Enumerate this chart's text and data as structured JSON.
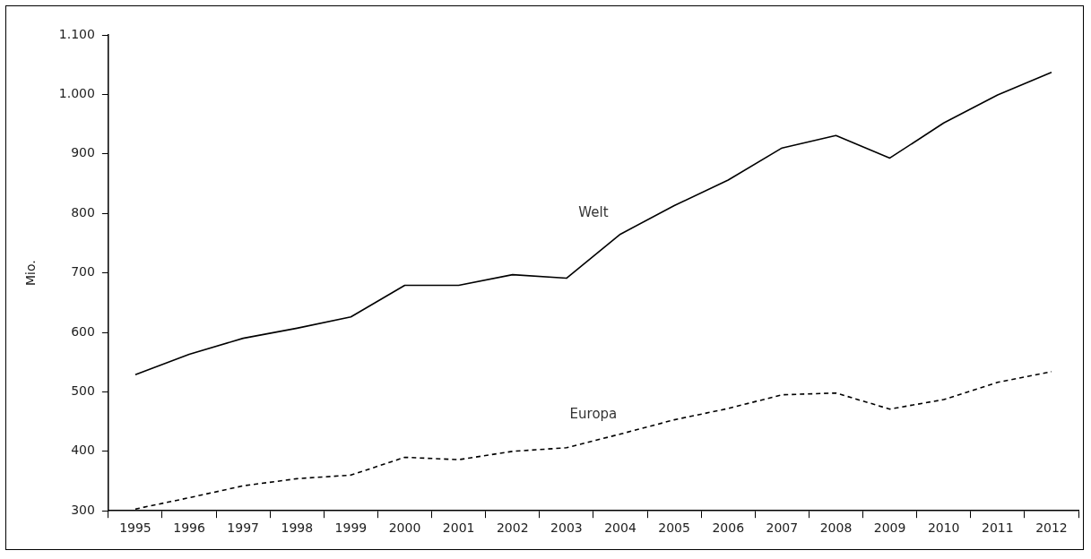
{
  "chart_data": {
    "type": "line",
    "ylabel": "Mio.",
    "categories": [
      "1995",
      "1996",
      "1997",
      "1998",
      "1999",
      "2000",
      "2001",
      "2002",
      "2003",
      "2004",
      "2005",
      "2006",
      "2007",
      "2008",
      "2009",
      "2010",
      "2011",
      "2012"
    ],
    "series": [
      {
        "name": "Welt",
        "color": "#000000",
        "line_style": "solid",
        "values": [
          529,
          563,
          590,
          607,
          626,
          679,
          679,
          697,
          691,
          765,
          813,
          856,
          910,
          931,
          893,
          952,
          999,
          1037
        ]
      },
      {
        "name": "Europa",
        "color": "#000000",
        "line_style": "dashed",
        "values": [
          303,
          322,
          342,
          354,
          360,
          390,
          386,
          400,
          406,
          429,
          453,
          472,
          495,
          498,
          471,
          487,
          516,
          534
        ]
      }
    ],
    "ylim": [
      300,
      1100
    ],
    "yticks": [
      300,
      400,
      500,
      600,
      700,
      800,
      900,
      {
        "value": 1000,
        "label": "1.000"
      },
      {
        "value": 1100,
        "label": "1.100"
      }
    ],
    "grid": false,
    "legend": false,
    "marker": "none"
  }
}
